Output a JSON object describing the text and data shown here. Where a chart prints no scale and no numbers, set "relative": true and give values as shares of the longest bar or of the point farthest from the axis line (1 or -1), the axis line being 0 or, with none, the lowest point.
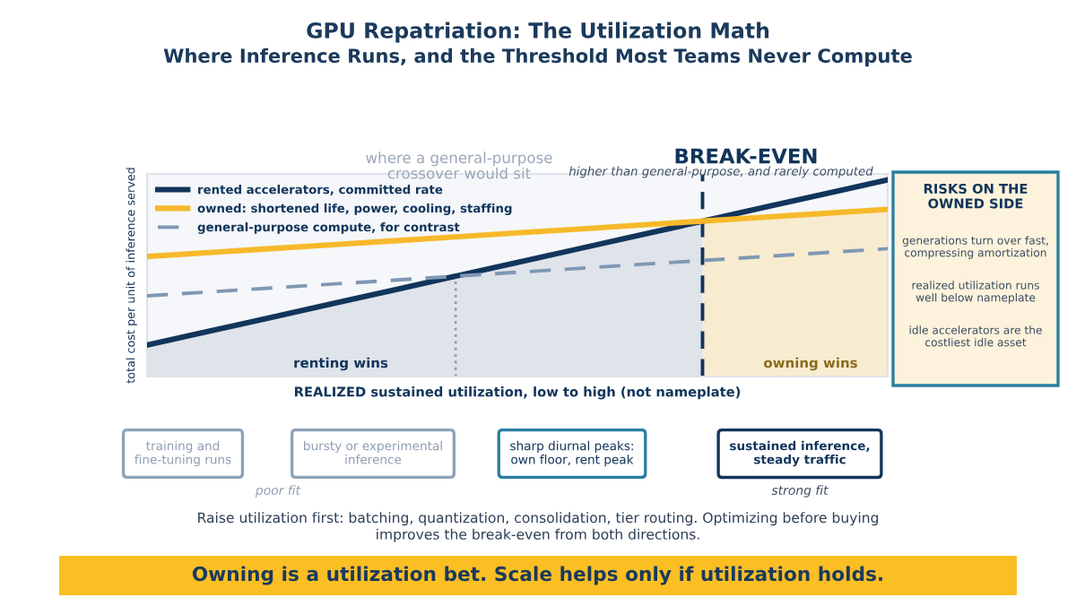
{
  "chart_data": {
    "type": "line",
    "title": "GPU Repatriation: The Utilization Math",
    "subtitle": "Where Inference Runs, and the Threshold Most Teams Never Compute",
    "xlabel": "REALIZED sustained utilization, low to high (not nameplate)",
    "ylabel": "total cost per unit of inference served",
    "relative": true,
    "legend": "top left",
    "categories": [
      null,
      null,
      null,
      null,
      null,
      null,
      null,
      null,
      null,
      null,
      null,
      null,
      null
    ],
    "series": [
      {
        "name": "rented accelerators, committed rate",
        "color": "#12355b",
        "line_style": "solid",
        "values": [
          0.16,
          0.23,
          0.3,
          0.37,
          0.44,
          0.51,
          0.58,
          0.65,
          0.72,
          0.79,
          0.86,
          0.93,
          1.0
        ]
      },
      {
        "name": "owned: shortened life, power, cooling, staffing",
        "color": "#f7b92b",
        "line_style": "solid",
        "values": [
          0.61,
          0.63,
          0.65,
          0.67,
          0.69,
          0.71,
          0.73,
          0.75,
          0.77,
          0.79,
          0.81,
          0.83,
          0.85
        ]
      },
      {
        "name": "general-purpose compute, for contrast",
        "color": "#7f98b3",
        "line_style": "dashed",
        "values": [
          0.41,
          0.43,
          0.45,
          0.47,
          0.49,
          0.51,
          0.53,
          0.55,
          0.57,
          0.59,
          0.61,
          0.63,
          0.65
        ]
      }
    ],
    "annotations": [
      "where a general-purpose\ncrossover would sit",
      "BREAK-EVEN",
      "higher than general-purpose, and rarely computed",
      "renting wins",
      "owning wins",
      "RISKS ON THE\nOWNED SIDE",
      "generations turn over fast,\ncompressing amortization",
      "realized utilization runs\nwell below nameplate",
      "idle accelerators are the\ncostliest idle asset",
      "training and\nfine-tuning runs",
      "bursty or experimental\ninference",
      "sharp diurnal peaks:\nown floor, rent peak",
      "sustained inference,\nsteady traffic",
      "poor fit",
      "strong fit",
      "Raise utilization first: batching, quantization, consolidation, tier routing. Optimizing before buying\nimproves the break-even from both directions.",
      "Owning is a utilization bet. Scale helps only if utilization holds."
    ]
  }
}
